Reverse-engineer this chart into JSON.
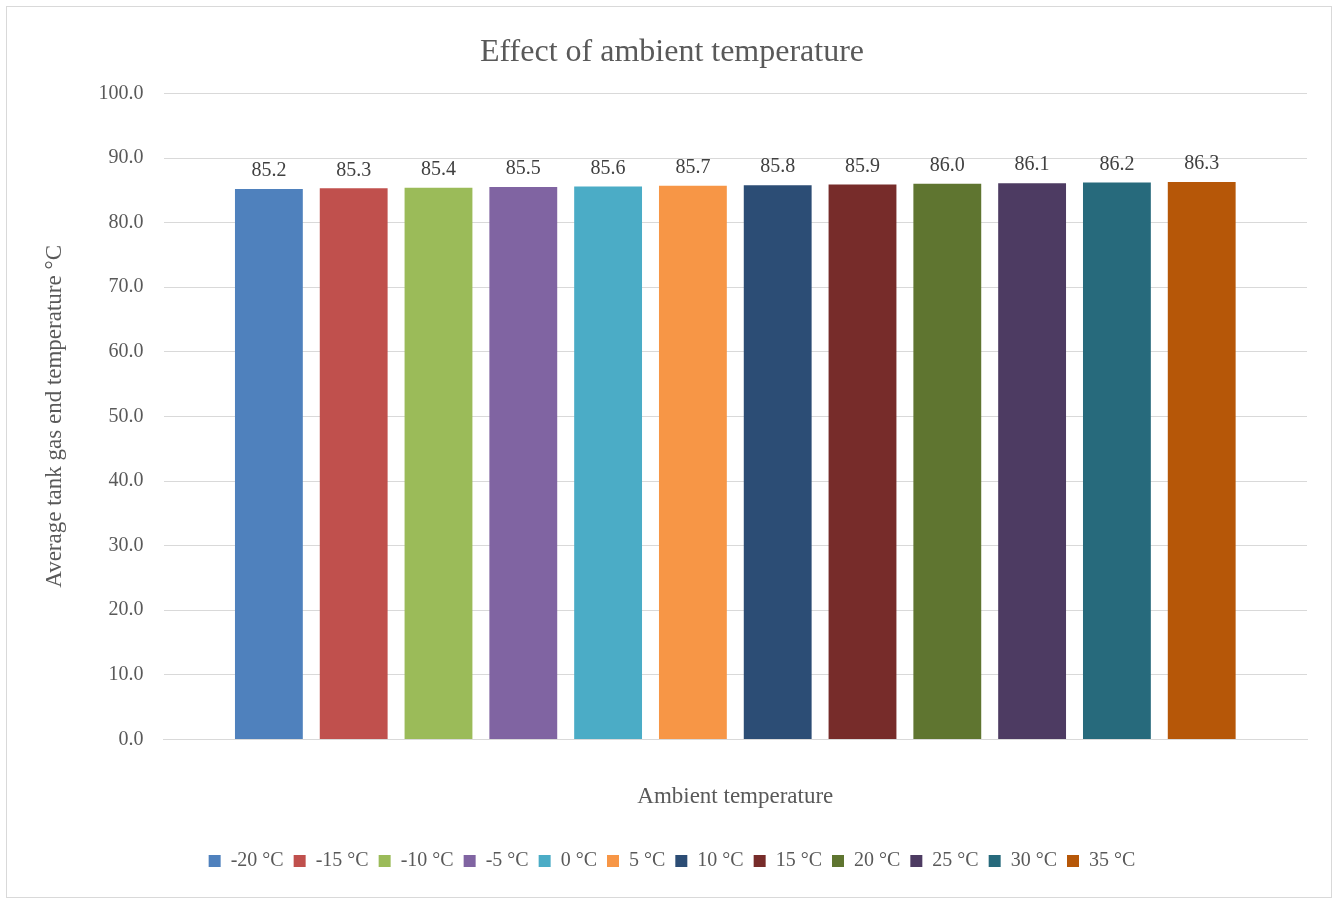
{
  "chart_data": {
    "type": "bar",
    "title": "Effect of ambient temperature",
    "xlabel": "Ambient temperature",
    "ylabel": "Average tank gas end temperature °C",
    "categories": [
      null
    ],
    "series": [
      {
        "name": "-20 °C",
        "color": "#4f81bd",
        "values": [
          85.2
        ],
        "value_labels": [
          "85.2"
        ]
      },
      {
        "name": "-15 °C",
        "color": "#c0504d",
        "values": [
          85.3
        ],
        "value_labels": [
          "85.3"
        ]
      },
      {
        "name": "-10 °C",
        "color": "#9bbb59",
        "values": [
          85.4
        ],
        "value_labels": [
          "85.4"
        ]
      },
      {
        "name": "-5 °C",
        "color": "#8064a2",
        "values": [
          85.5
        ],
        "value_labels": [
          "85.5"
        ]
      },
      {
        "name": "0 °C",
        "color": "#4bacc6",
        "values": [
          85.6
        ],
        "value_labels": [
          "85.6"
        ]
      },
      {
        "name": "5 °C",
        "color": "#f79646",
        "values": [
          85.7
        ],
        "value_labels": [
          "85.7"
        ]
      },
      {
        "name": "10 °C",
        "color": "#2c4d75",
        "values": [
          85.8
        ],
        "value_labels": [
          "85.8"
        ]
      },
      {
        "name": "15 °C",
        "color": "#772c2a",
        "values": [
          85.9
        ],
        "value_labels": [
          "85.9"
        ]
      },
      {
        "name": "20 °C",
        "color": "#5f7530",
        "values": [
          86.0
        ],
        "value_labels": [
          "86.0"
        ]
      },
      {
        "name": "25 °C",
        "color": "#4d3b62",
        "values": [
          86.1
        ],
        "value_labels": [
          "86.1"
        ]
      },
      {
        "name": "30 °C",
        "color": "#276a7c",
        "values": [
          86.2
        ],
        "value_labels": [
          "86.2"
        ]
      },
      {
        "name": "35 °C",
        "color": "#b65708",
        "values": [
          86.3
        ],
        "value_labels": [
          "86.3"
        ]
      }
    ],
    "ylim": [
      0,
      100
    ],
    "yticks": [
      {
        "value": 0,
        "label": "0.0"
      },
      {
        "value": 10,
        "label": "10.0"
      },
      {
        "value": 20,
        "label": "20.0"
      },
      {
        "value": 30,
        "label": "30.0"
      },
      {
        "value": 40,
        "label": "40.0"
      },
      {
        "value": 50,
        "label": "50.0"
      },
      {
        "value": 60,
        "label": "60.0"
      },
      {
        "value": 70,
        "label": "70.0"
      },
      {
        "value": 80,
        "label": "80.0"
      },
      {
        "value": 90,
        "label": "90.0"
      },
      {
        "value": 100,
        "label": "100.0"
      }
    ],
    "grid": "y",
    "legend": "bottom",
    "tick_labels": "y"
  }
}
